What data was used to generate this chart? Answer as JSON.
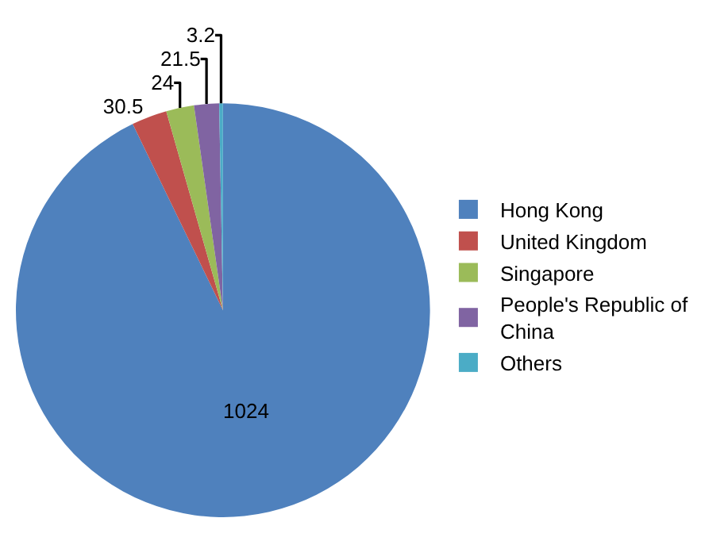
{
  "chart_data": {
    "type": "pie",
    "categories": [
      "Hong Kong",
      "United Kingdom",
      "Singapore",
      "People's Republic of China",
      "Others"
    ],
    "values": [
      1024,
      30.5,
      24,
      21.5,
      3.2
    ],
    "colors": [
      "#4f81bd",
      "#c0504d",
      "#9bbb59",
      "#8064a2",
      "#4bacc6"
    ],
    "data_labels": true,
    "legend": "right"
  }
}
